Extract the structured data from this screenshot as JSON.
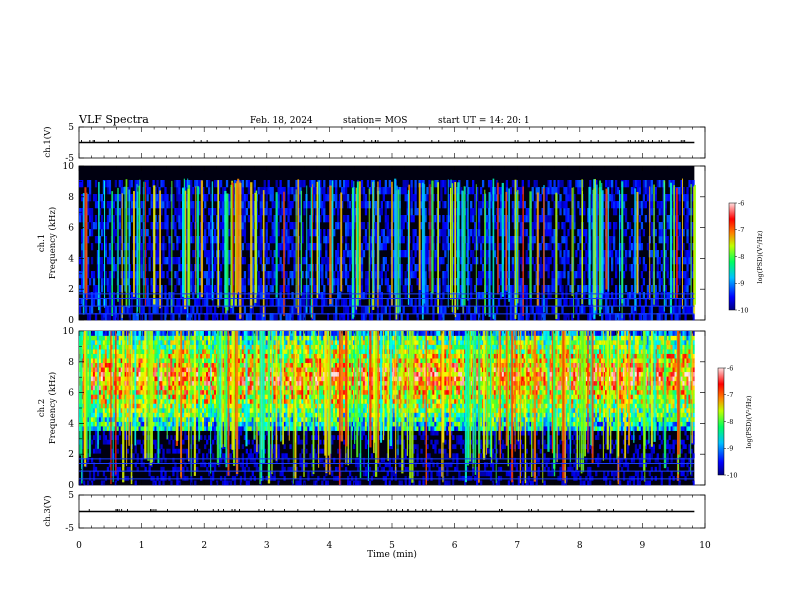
{
  "chart_data": {
    "type": "heatmap",
    "header": {
      "title": "VLF Spectra",
      "date": "Feb. 18, 2024",
      "station": "station= MOS",
      "start": "start  UT =   14: 20: 1"
    },
    "xlabel": "Time  (min)",
    "xlim": [
      0,
      10
    ],
    "xticks": [
      "0",
      "1",
      "2",
      "3",
      "4",
      "5",
      "6",
      "7",
      "8",
      "9",
      "10"
    ],
    "data_end_min": 9.83,
    "panels": [
      {
        "id": "ch1-waveform",
        "kind": "line",
        "ylabel": "ch.1(V)",
        "ylim": [
          -5,
          5
        ],
        "yticks": [
          "5",
          "-5"
        ],
        "baseline": 0
      },
      {
        "id": "ch1-spectrogram",
        "kind": "spectrogram",
        "ylabel_top": "ch.1",
        "ylabel": "Frequency  (kHz)",
        "ylim": [
          0,
          10
        ],
        "yticks": [
          "0",
          "2",
          "4",
          "6",
          "8",
          "10"
        ],
        "band_khz": [
          0,
          9.2
        ],
        "activity": "low",
        "colorbar": {
          "label": "log(PSD)(V²/Hz)",
          "range": [
            -10,
            -6
          ],
          "ticks": [
            "-6",
            "-7",
            "-8",
            "-9",
            "-10"
          ]
        }
      },
      {
        "id": "ch2-spectrogram",
        "kind": "spectrogram",
        "ylabel_top": "ch.2",
        "ylabel": "Frequency  (kHz)",
        "ylim": [
          0,
          10
        ],
        "yticks": [
          "0",
          "2",
          "4",
          "6",
          "8",
          "10"
        ],
        "band_khz": [
          3.5,
          10
        ],
        "peak_khz": 7,
        "activity": "high",
        "colorbar": {
          "label": "log(PSD)(V²/Hz)",
          "range": [
            -10,
            -6
          ],
          "ticks": [
            "-6",
            "-7",
            "-8",
            "-9",
            "-10"
          ]
        }
      },
      {
        "id": "ch3-waveform",
        "kind": "line",
        "ylabel": "ch.3(V)",
        "ylim": [
          -5,
          5
        ],
        "yticks": [
          "5",
          "-5"
        ],
        "baseline": 0
      }
    ],
    "colormap": [
      "#000000",
      "#00007f",
      "#0000ff",
      "#0080ff",
      "#00ffff",
      "#00ff80",
      "#80ff00",
      "#ffff00",
      "#ff8000",
      "#ff0000",
      "#ffb0b0",
      "#ffffff"
    ]
  }
}
